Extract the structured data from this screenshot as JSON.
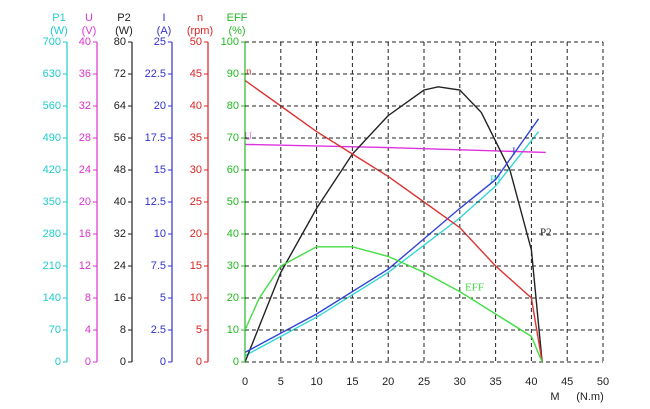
{
  "chart_data": {
    "type": "line",
    "x_label": "M",
    "x_unit": "(N.m)",
    "xlim": [
      0,
      50
    ],
    "xticks": [
      0,
      5,
      10,
      15,
      20,
      25,
      30,
      35,
      40,
      45,
      50
    ],
    "grid": true,
    "axes": [
      {
        "label": "P1",
        "unit": "(W)",
        "color": "#22cccc",
        "ylim": [
          0,
          700
        ],
        "yticks": [
          0,
          70,
          140,
          210,
          280,
          350,
          420,
          490,
          560,
          630,
          700
        ],
        "series": {
          "name": "P1",
          "color": "#33d6d6",
          "x": [
            0,
            10,
            20,
            30,
            35,
            41
          ],
          "values": [
            14,
            98,
            196,
            315,
            385,
            504
          ]
        }
      },
      {
        "label": "U",
        "unit": "(V)",
        "color": "#dd33cc",
        "ylim": [
          0,
          40
        ],
        "yticks": [
          0,
          4,
          8,
          12,
          16,
          20,
          24,
          28,
          32,
          36,
          40
        ],
        "series": {
          "name": "U",
          "color": "#dd33dd",
          "x": [
            0,
            20,
            42
          ],
          "values": [
            27.2,
            26.8,
            26.2
          ]
        }
      },
      {
        "label": "P2",
        "unit": "(W)",
        "color": "#222222",
        "ylim": [
          0,
          80
        ],
        "yticks": [
          0,
          8,
          16,
          24,
          32,
          40,
          48,
          56,
          64,
          72,
          80
        ],
        "series": {
          "name": "P2",
          "color": "#222222",
          "x": [
            0,
            5,
            10,
            15,
            20,
            25,
            27,
            30,
            33,
            37,
            40,
            41.5
          ],
          "values": [
            0,
            22.4,
            38.4,
            52,
            61.6,
            68,
            68.8,
            68,
            62.4,
            48,
            28,
            0
          ]
        }
      },
      {
        "label": "I",
        "unit": "(A)",
        "color": "#3333cc",
        "ylim": [
          0,
          25
        ],
        "yticks": [
          0,
          2.5,
          5,
          7.5,
          10,
          12.5,
          15,
          17.5,
          20,
          22.5,
          25
        ],
        "series": {
          "name": "I",
          "color": "#3344dd",
          "x": [
            0,
            10,
            20,
            30,
            35,
            41
          ],
          "values": [
            0.75,
            3.75,
            7.25,
            12,
            14.25,
            19
          ]
        }
      },
      {
        "label": "n",
        "unit": "(rpm)",
        "color": "#dd2222",
        "ylim": [
          0,
          50
        ],
        "yticks": [
          0,
          5,
          10,
          15,
          20,
          25,
          30,
          35,
          40,
          45,
          50
        ],
        "series": {
          "name": "n",
          "color": "#dd3333",
          "x": [
            0,
            5,
            10,
            15,
            20,
            25,
            30,
            35,
            40,
            41.5
          ],
          "values": [
            44,
            40,
            36,
            32.5,
            29,
            25,
            21,
            15,
            10,
            0
          ]
        }
      },
      {
        "label": "EFF",
        "unit": "(%)",
        "color": "#22bb22",
        "ylim": [
          0,
          100
        ],
        "yticks": [
          0,
          10,
          20,
          30,
          40,
          50,
          60,
          70,
          80,
          90,
          100
        ],
        "series": {
          "name": "EFF",
          "color": "#44dd44",
          "x": [
            0,
            2,
            5,
            10,
            15,
            20,
            25,
            30,
            35,
            40,
            41.5
          ],
          "values": [
            10,
            20,
            30,
            36,
            36,
            33,
            28,
            22,
            15,
            8,
            0
          ]
        }
      }
    ]
  }
}
